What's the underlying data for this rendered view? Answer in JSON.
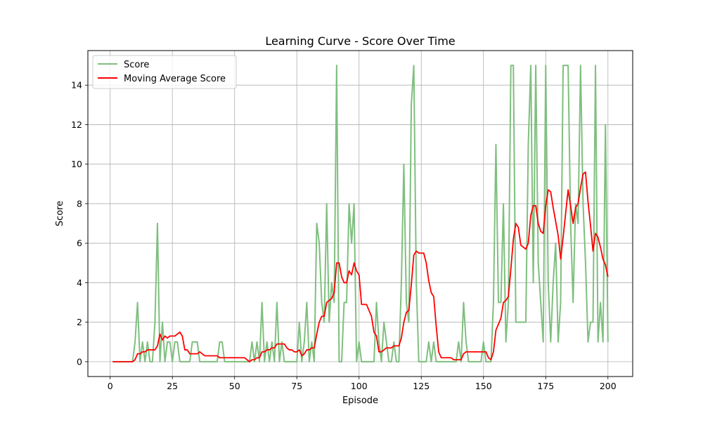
{
  "chart_data": {
    "type": "line",
    "title": "Learning Curve - Score Over Time",
    "xlabel": "Episode",
    "ylabel": "Score",
    "xlim": [
      -8.95,
      209.95
    ],
    "ylim": [
      -0.75,
      15.75
    ],
    "xticks": [
      0,
      25,
      50,
      75,
      100,
      125,
      150,
      175,
      200
    ],
    "yticks": [
      0,
      2,
      4,
      6,
      8,
      10,
      12,
      14
    ],
    "grid": true,
    "legend": "upper left",
    "x": [
      1,
      2,
      3,
      4,
      5,
      6,
      7,
      8,
      9,
      10,
      11,
      12,
      13,
      14,
      15,
      16,
      17,
      18,
      19,
      20,
      21,
      22,
      23,
      24,
      25,
      26,
      27,
      28,
      29,
      30,
      31,
      32,
      33,
      34,
      35,
      36,
      37,
      38,
      39,
      40,
      41,
      42,
      43,
      44,
      45,
      46,
      47,
      48,
      49,
      50,
      51,
      52,
      53,
      54,
      55,
      56,
      57,
      58,
      59,
      60,
      61,
      62,
      63,
      64,
      65,
      66,
      67,
      68,
      69,
      70,
      71,
      72,
      73,
      74,
      75,
      76,
      77,
      78,
      79,
      80,
      81,
      82,
      83,
      84,
      85,
      86,
      87,
      88,
      89,
      90,
      91,
      92,
      93,
      94,
      95,
      96,
      97,
      98,
      99,
      100,
      101,
      102,
      103,
      104,
      105,
      106,
      107,
      108,
      109,
      110,
      111,
      112,
      113,
      114,
      115,
      116,
      117,
      118,
      119,
      120,
      121,
      122,
      123,
      124,
      125,
      126,
      127,
      128,
      129,
      130,
      131,
      132,
      133,
      134,
      135,
      136,
      137,
      138,
      139,
      140,
      141,
      142,
      143,
      144,
      145,
      146,
      147,
      148,
      149,
      150,
      151,
      152,
      153,
      154,
      155,
      156,
      157,
      158,
      159,
      160,
      161,
      162,
      163,
      164,
      165,
      166,
      167,
      168,
      169,
      170,
      171,
      172,
      173,
      174,
      175,
      176,
      177,
      178,
      179,
      180,
      181,
      182,
      183,
      184,
      185,
      186,
      187,
      188,
      189,
      190,
      191,
      192,
      193,
      194,
      195,
      196,
      197,
      198,
      199,
      200
    ],
    "series": [
      {
        "name": "Score",
        "color": "#7fbf7f",
        "values": [
          0,
          0,
          0,
          0,
          0,
          0,
          0,
          0,
          0,
          1,
          3,
          0,
          1,
          0,
          1,
          0,
          0,
          2,
          7,
          0,
          2,
          0,
          1,
          1,
          0,
          1,
          1,
          0,
          0,
          0,
          0,
          0,
          1,
          1,
          1,
          0,
          0,
          0,
          0,
          0,
          0,
          0,
          0,
          1,
          1,
          0,
          0,
          0,
          0,
          0,
          0,
          0,
          0,
          0,
          0,
          0,
          1,
          0,
          1,
          0,
          3,
          0,
          1,
          0,
          1,
          0,
          3,
          0,
          1,
          0,
          0,
          0,
          0,
          0,
          0,
          2,
          0,
          1,
          3,
          0,
          1,
          0,
          7,
          6,
          3,
          2,
          8,
          2,
          4,
          3,
          15,
          0,
          0,
          3,
          3,
          8,
          6,
          8,
          0,
          1,
          0,
          0,
          0,
          0,
          0,
          0,
          3,
          1,
          0,
          2,
          1,
          0,
          0,
          1,
          0,
          0,
          4,
          10,
          3,
          2,
          13,
          15,
          4,
          0,
          0,
          0,
          0,
          1,
          0,
          1,
          0,
          0,
          0,
          0,
          0,
          0,
          0,
          0,
          0,
          1,
          0,
          3,
          1,
          0,
          0,
          0,
          0,
          0,
          0,
          1,
          0,
          0,
          0,
          3,
          11,
          3,
          3,
          8,
          1,
          3,
          15,
          15,
          2,
          2,
          2,
          2,
          2,
          11,
          15,
          4,
          15,
          5,
          3,
          1,
          15,
          4,
          1,
          4,
          6,
          1,
          3,
          15,
          15,
          15,
          7,
          3,
          8,
          7,
          15,
          8,
          5,
          1,
          2,
          2,
          15,
          1,
          3,
          1,
          12,
          1
        ]
      },
      {
        "name": "Moving Average Score",
        "color": "#ff0000",
        "values": [
          0,
          0,
          0,
          0,
          0,
          0,
          0,
          0,
          0,
          0.1,
          0.4,
          0.4,
          0.5,
          0.5,
          0.6,
          0.6,
          0.6,
          0.6,
          0.8,
          1.4,
          1.1,
          1.3,
          1.2,
          1.3,
          1.3,
          1.3,
          1.4,
          1.5,
          1.3,
          0.6,
          0.6,
          0.4,
          0.4,
          0.4,
          0.4,
          0.5,
          0.4,
          0.3,
          0.3,
          0.3,
          0.3,
          0.3,
          0.3,
          0.2,
          0.2,
          0.2,
          0.2,
          0.2,
          0.2,
          0.2,
          0.2,
          0.2,
          0.2,
          0.2,
          0.1,
          0,
          0.1,
          0.1,
          0.2,
          0.2,
          0.5,
          0.5,
          0.6,
          0.6,
          0.7,
          0.7,
          0.9,
          0.9,
          0.9,
          0.9,
          0.7,
          0.6,
          0.6,
          0.5,
          0.5,
          0.6,
          0.3,
          0.4,
          0.6,
          0.6,
          0.7,
          0.7,
          1.4,
          2,
          2.3,
          2.3,
          3,
          3.1,
          3.2,
          3.5,
          5,
          5,
          4.3,
          4,
          4,
          4.6,
          4.4,
          5,
          4.6,
          4.4,
          2.9,
          2.9,
          2.9,
          2.6,
          2.3,
          1.5,
          1.3,
          0.5,
          0.5,
          0.6,
          0.7,
          0.7,
          0.7,
          0.8,
          0.8,
          0.8,
          1.2,
          2,
          2.5,
          2.6,
          3.9,
          5.4,
          5.6,
          5.5,
          5.5,
          5.5,
          5,
          4.1,
          3.5,
          3.3,
          1.8,
          0.5,
          0.2,
          0.2,
          0.2,
          0.2,
          0.2,
          0.1,
          0.1,
          0.1,
          0.1,
          0.4,
          0.5,
          0.5,
          0.5,
          0.5,
          0.5,
          0.5,
          0.5,
          0.5,
          0.5,
          0.2,
          0.1,
          0.5,
          1.6,
          1.9,
          2.2,
          3,
          3.1,
          3.3,
          4.7,
          6.2,
          7,
          6.8,
          5.9,
          5.8,
          5.7,
          6,
          7.4,
          7.9,
          7.9,
          7,
          6.6,
          6.5,
          7.9,
          8.7,
          8.6,
          7.8,
          7.1,
          6.4,
          5.2,
          6.3,
          7.5,
          8.7,
          7.9,
          7,
          7.8,
          8,
          8.8,
          9.5,
          9.6,
          8.1,
          6.9,
          5.6,
          6.5,
          6.3,
          5.8,
          5.2,
          4.9,
          4.3
        ]
      }
    ]
  }
}
